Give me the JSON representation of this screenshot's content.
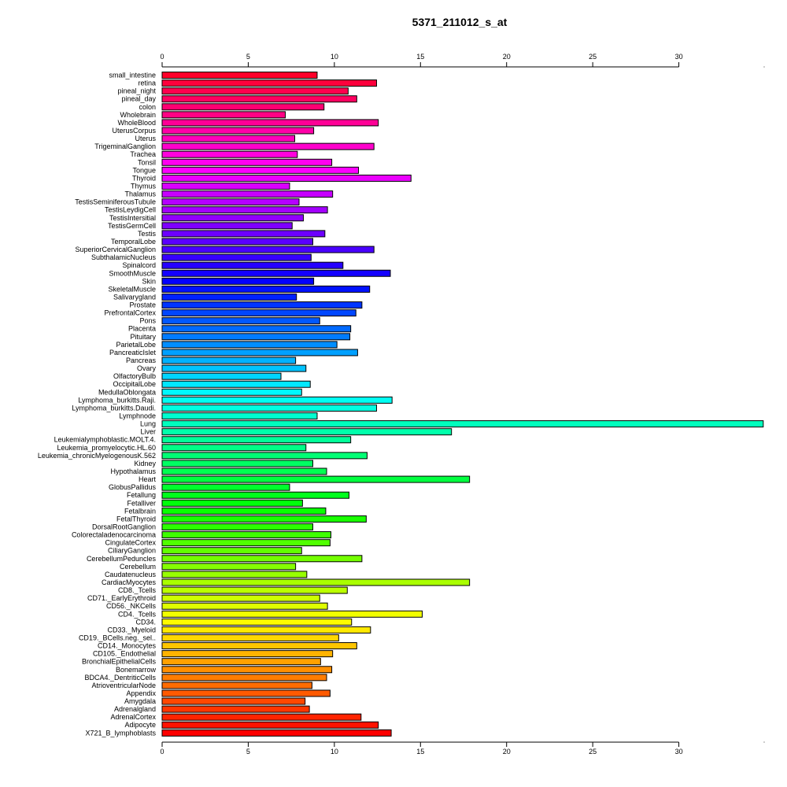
{
  "chart_data": {
    "type": "bar",
    "orientation": "horizontal",
    "title": "5371_211012_s_at",
    "xlabel": "",
    "ylabel": "",
    "xlim": [
      0,
      35
    ],
    "x_ticks": [
      0,
      5,
      10,
      15,
      20,
      25,
      30
    ],
    "grid": false,
    "axes_positions": [
      "top",
      "bottom"
    ],
    "color_scheme": "rainbow",
    "categories": [
      "small_intestine",
      "retina",
      "pineal_night",
      "pineal_day",
      "colon",
      "Wholebrain",
      "WholeBlood",
      "UterusCorpus",
      "Uterus",
      "TrigeminalGanglion",
      "Trachea",
      "Tonsil",
      "Tongue",
      "Thyroid",
      "Thymus",
      "Thalamus",
      "TestisSeminiferousTubule",
      "TestisLeydigCell",
      "TestisIntersitial",
      "TestisGermCell",
      "Testis",
      "TemporalLobe",
      "SuperiorCervicalGanglion",
      "SubthalamicNucleus",
      "Spinalcord",
      "SmoothMuscle",
      "Skin",
      "SkeletalMuscle",
      "Salivarygland",
      "Prostate",
      "PrefrontalCortex",
      "Pons",
      "Placenta",
      "Pituitary",
      "ParietalLobe",
      "PancreaticIslet",
      "Pancreas",
      "Ovary",
      "OlfactoryBulb",
      "OccipitalLobe",
      "MedullaOblongata",
      "Lymphoma_burkitts.Raji.",
      "Lymphoma_burkitts.Daudi.",
      "Lymphnode",
      "Lung",
      "Liver",
      "Leukemialymphoblastic.MOLT.4.",
      "Leukemia_promyelocytic.HL.60",
      "Leukemia_chronicMyelogenousK.562",
      "Kidney",
      "Hypothalamus",
      "Heart",
      "GlobusPallidus",
      "Fetallung",
      "Fetalliver",
      "Fetalbrain",
      "FetalThyroid",
      "DorsalRootGanglion",
      "Colorectaladenocarcinoma",
      "CingulateCortex",
      "CiliaryGanglion",
      "CerebellumPeduncles",
      "Cerebellum",
      "Caudatenucleus",
      "CardiacMyocytes",
      "CD8._Tcells",
      "CD71._EarlyErythroid",
      "CD56._NKCells",
      "CD4._Tcells",
      "CD34.",
      "CD33._Myeloid",
      "CD19._BCells.neg._sel..",
      "CD14._Monocytes",
      "CD105._Endothelial",
      "BronchialEpithelialCells",
      "Bonemarrow",
      "BDCA4._DentriticCells",
      "AtrioventricularNode",
      "Appendix",
      "Amygdala",
      "Adrenalgland",
      "AdrenalCortex",
      "Adipocyte",
      "X721_B_lymphoblasts"
    ],
    "values": [
      9.0,
      12.45,
      10.8,
      11.3,
      9.4,
      7.15,
      12.55,
      8.8,
      7.7,
      12.3,
      7.85,
      9.85,
      11.4,
      14.45,
      7.4,
      9.9,
      7.95,
      9.6,
      8.2,
      7.55,
      9.45,
      8.75,
      12.3,
      8.65,
      10.5,
      13.25,
      8.8,
      12.05,
      7.8,
      11.6,
      11.25,
      9.15,
      10.95,
      10.9,
      10.15,
      11.35,
      7.75,
      8.35,
      6.9,
      8.6,
      8.1,
      13.35,
      12.45,
      9.0,
      34.9,
      16.8,
      10.95,
      8.35,
      11.9,
      8.75,
      9.55,
      17.85,
      7.4,
      10.85,
      8.15,
      9.5,
      11.85,
      8.75,
      9.8,
      9.75,
      8.1,
      11.6,
      7.75,
      8.4,
      17.85,
      10.75,
      9.15,
      9.6,
      15.1,
      11.0,
      12.1,
      10.25,
      11.3,
      9.9,
      9.2,
      9.85,
      9.55,
      8.7,
      9.75,
      8.3,
      8.55,
      11.55,
      12.55,
      13.3
    ]
  }
}
